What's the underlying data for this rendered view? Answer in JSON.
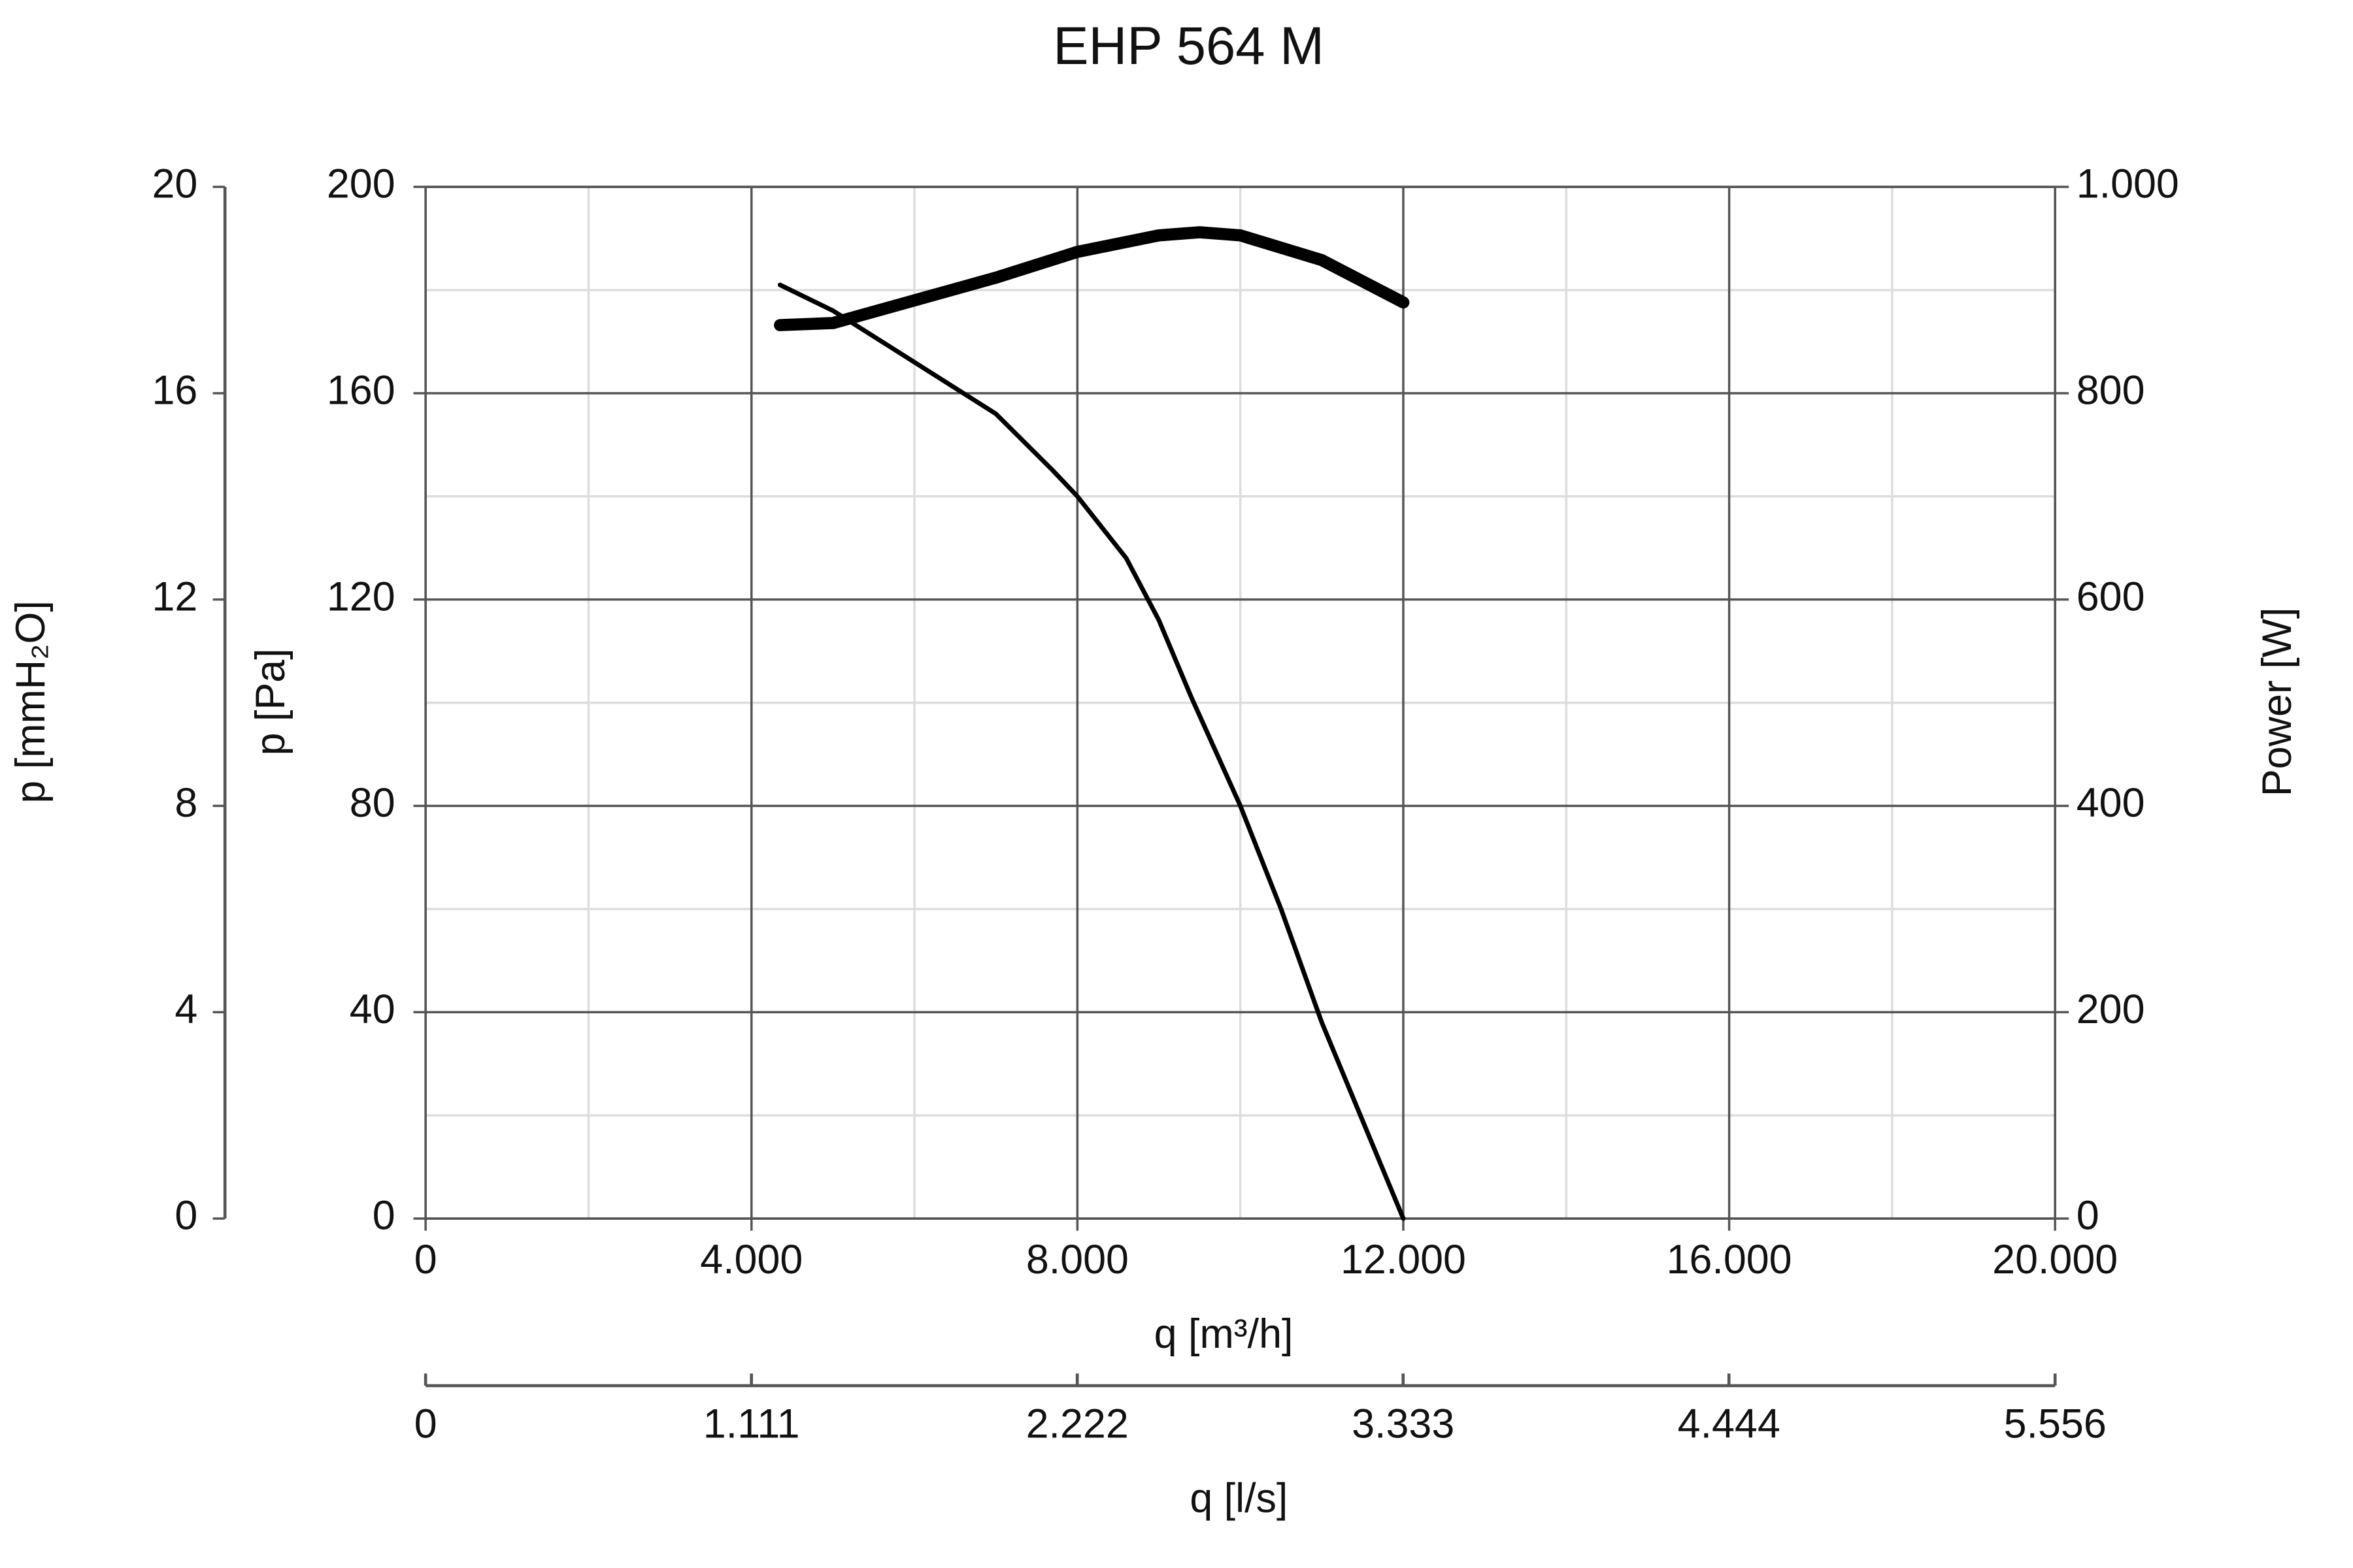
{
  "chart_data": {
    "type": "line",
    "title": "EHP 564 M",
    "x_label": "q [m³/h]",
    "x2_label": "q [l/s]",
    "y_label": "p [Pa]",
    "y2_label": "Power [W]",
    "y3_label": "p [mmH₂O]",
    "xlim": [
      0,
      20000
    ],
    "xticks": [
      0,
      {
        "value": 4000,
        "label": "4.000"
      },
      {
        "value": 8000,
        "label": "8.000"
      },
      {
        "value": 12000,
        "label": "12.000"
      },
      {
        "value": 16000,
        "label": "16.000"
      },
      {
        "value": 20000,
        "label": "20.000"
      }
    ],
    "xminorticks": [
      2000,
      6000,
      10000,
      14000,
      18000
    ],
    "x2lim": [
      0,
      5.556
    ],
    "x2ticks": [
      0,
      1.111,
      2.222,
      3.333,
      4.444,
      5.556
    ],
    "ylim": [
      0,
      200
    ],
    "yticks": [
      0,
      40,
      80,
      120,
      160,
      200
    ],
    "yminorticks": [
      20,
      60,
      100,
      140,
      180
    ],
    "y2lim": [
      0,
      1000
    ],
    "y2ticks": [
      0,
      200,
      400,
      600,
      800,
      {
        "value": 1000,
        "label": "1.000"
      }
    ],
    "y3lim": [
      0,
      20
    ],
    "y3ticks": [
      0,
      4,
      8,
      12,
      16,
      20
    ],
    "grid": true,
    "series": [
      {
        "name": "p",
        "color": "#000000",
        "width": 3,
        "x": [
          4350,
          5000,
          6000,
          7000,
          7700,
          8000,
          8600,
          9000,
          9400,
          10000,
          10500,
          11000,
          11500,
          12000
        ],
        "values": [
          181,
          176,
          166,
          156,
          145,
          140,
          128,
          116,
          101,
          80,
          60,
          38,
          19,
          0
        ]
      },
      {
        "name": "Power",
        "color": "#000000",
        "width": 8,
        "axis": "y2",
        "x": [
          4350,
          5000,
          6000,
          7000,
          8000,
          9000,
          9500,
          10000,
          11000,
          12000
        ],
        "values": [
          866,
          868,
          890,
          912,
          937,
          953,
          956,
          953,
          929,
          888
        ]
      }
    ]
  }
}
